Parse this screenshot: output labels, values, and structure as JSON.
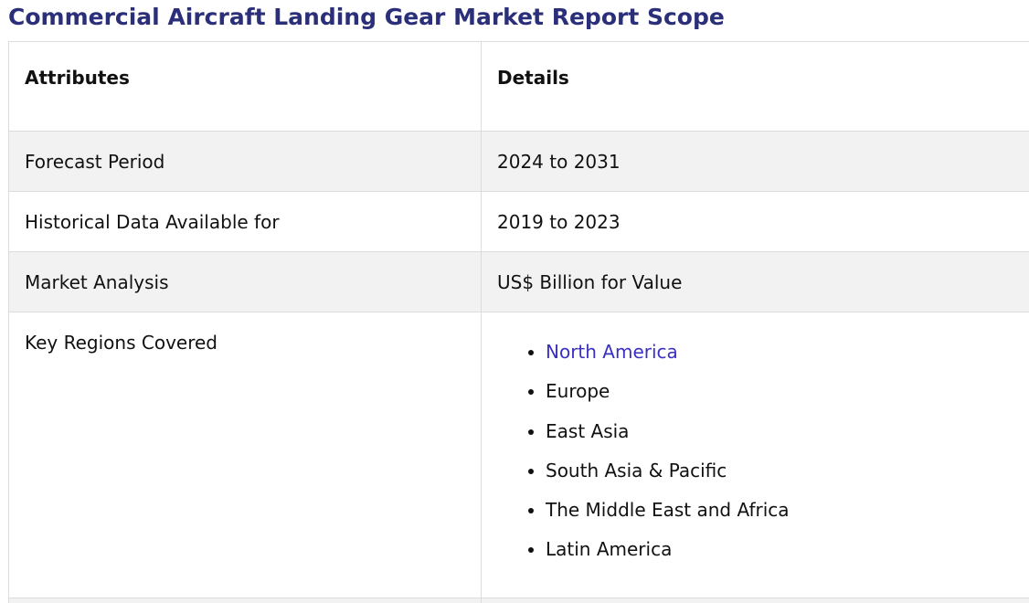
{
  "title": "Commercial Aircraft Landing Gear Market Report Scope",
  "table": {
    "headers": [
      "Attributes",
      "Details"
    ],
    "rows": [
      {
        "attribute": "Forecast Period",
        "detail": "2024 to 2031"
      },
      {
        "attribute": "Historical Data Available for",
        "detail": "2019 to 2023"
      },
      {
        "attribute": "Market Analysis",
        "detail": "US$ Billion for Value"
      }
    ],
    "regions": {
      "attribute": "Key Regions Covered",
      "items": [
        "North America",
        "Europe",
        "East Asia",
        "South Asia & Pacific",
        "The Middle East and Africa",
        "Latin America"
      ]
    }
  },
  "colors": {
    "title": "#2b2f7a",
    "link": "#3a30c2",
    "row_shade": "#f2f2f2",
    "border": "#dcdcdc"
  }
}
